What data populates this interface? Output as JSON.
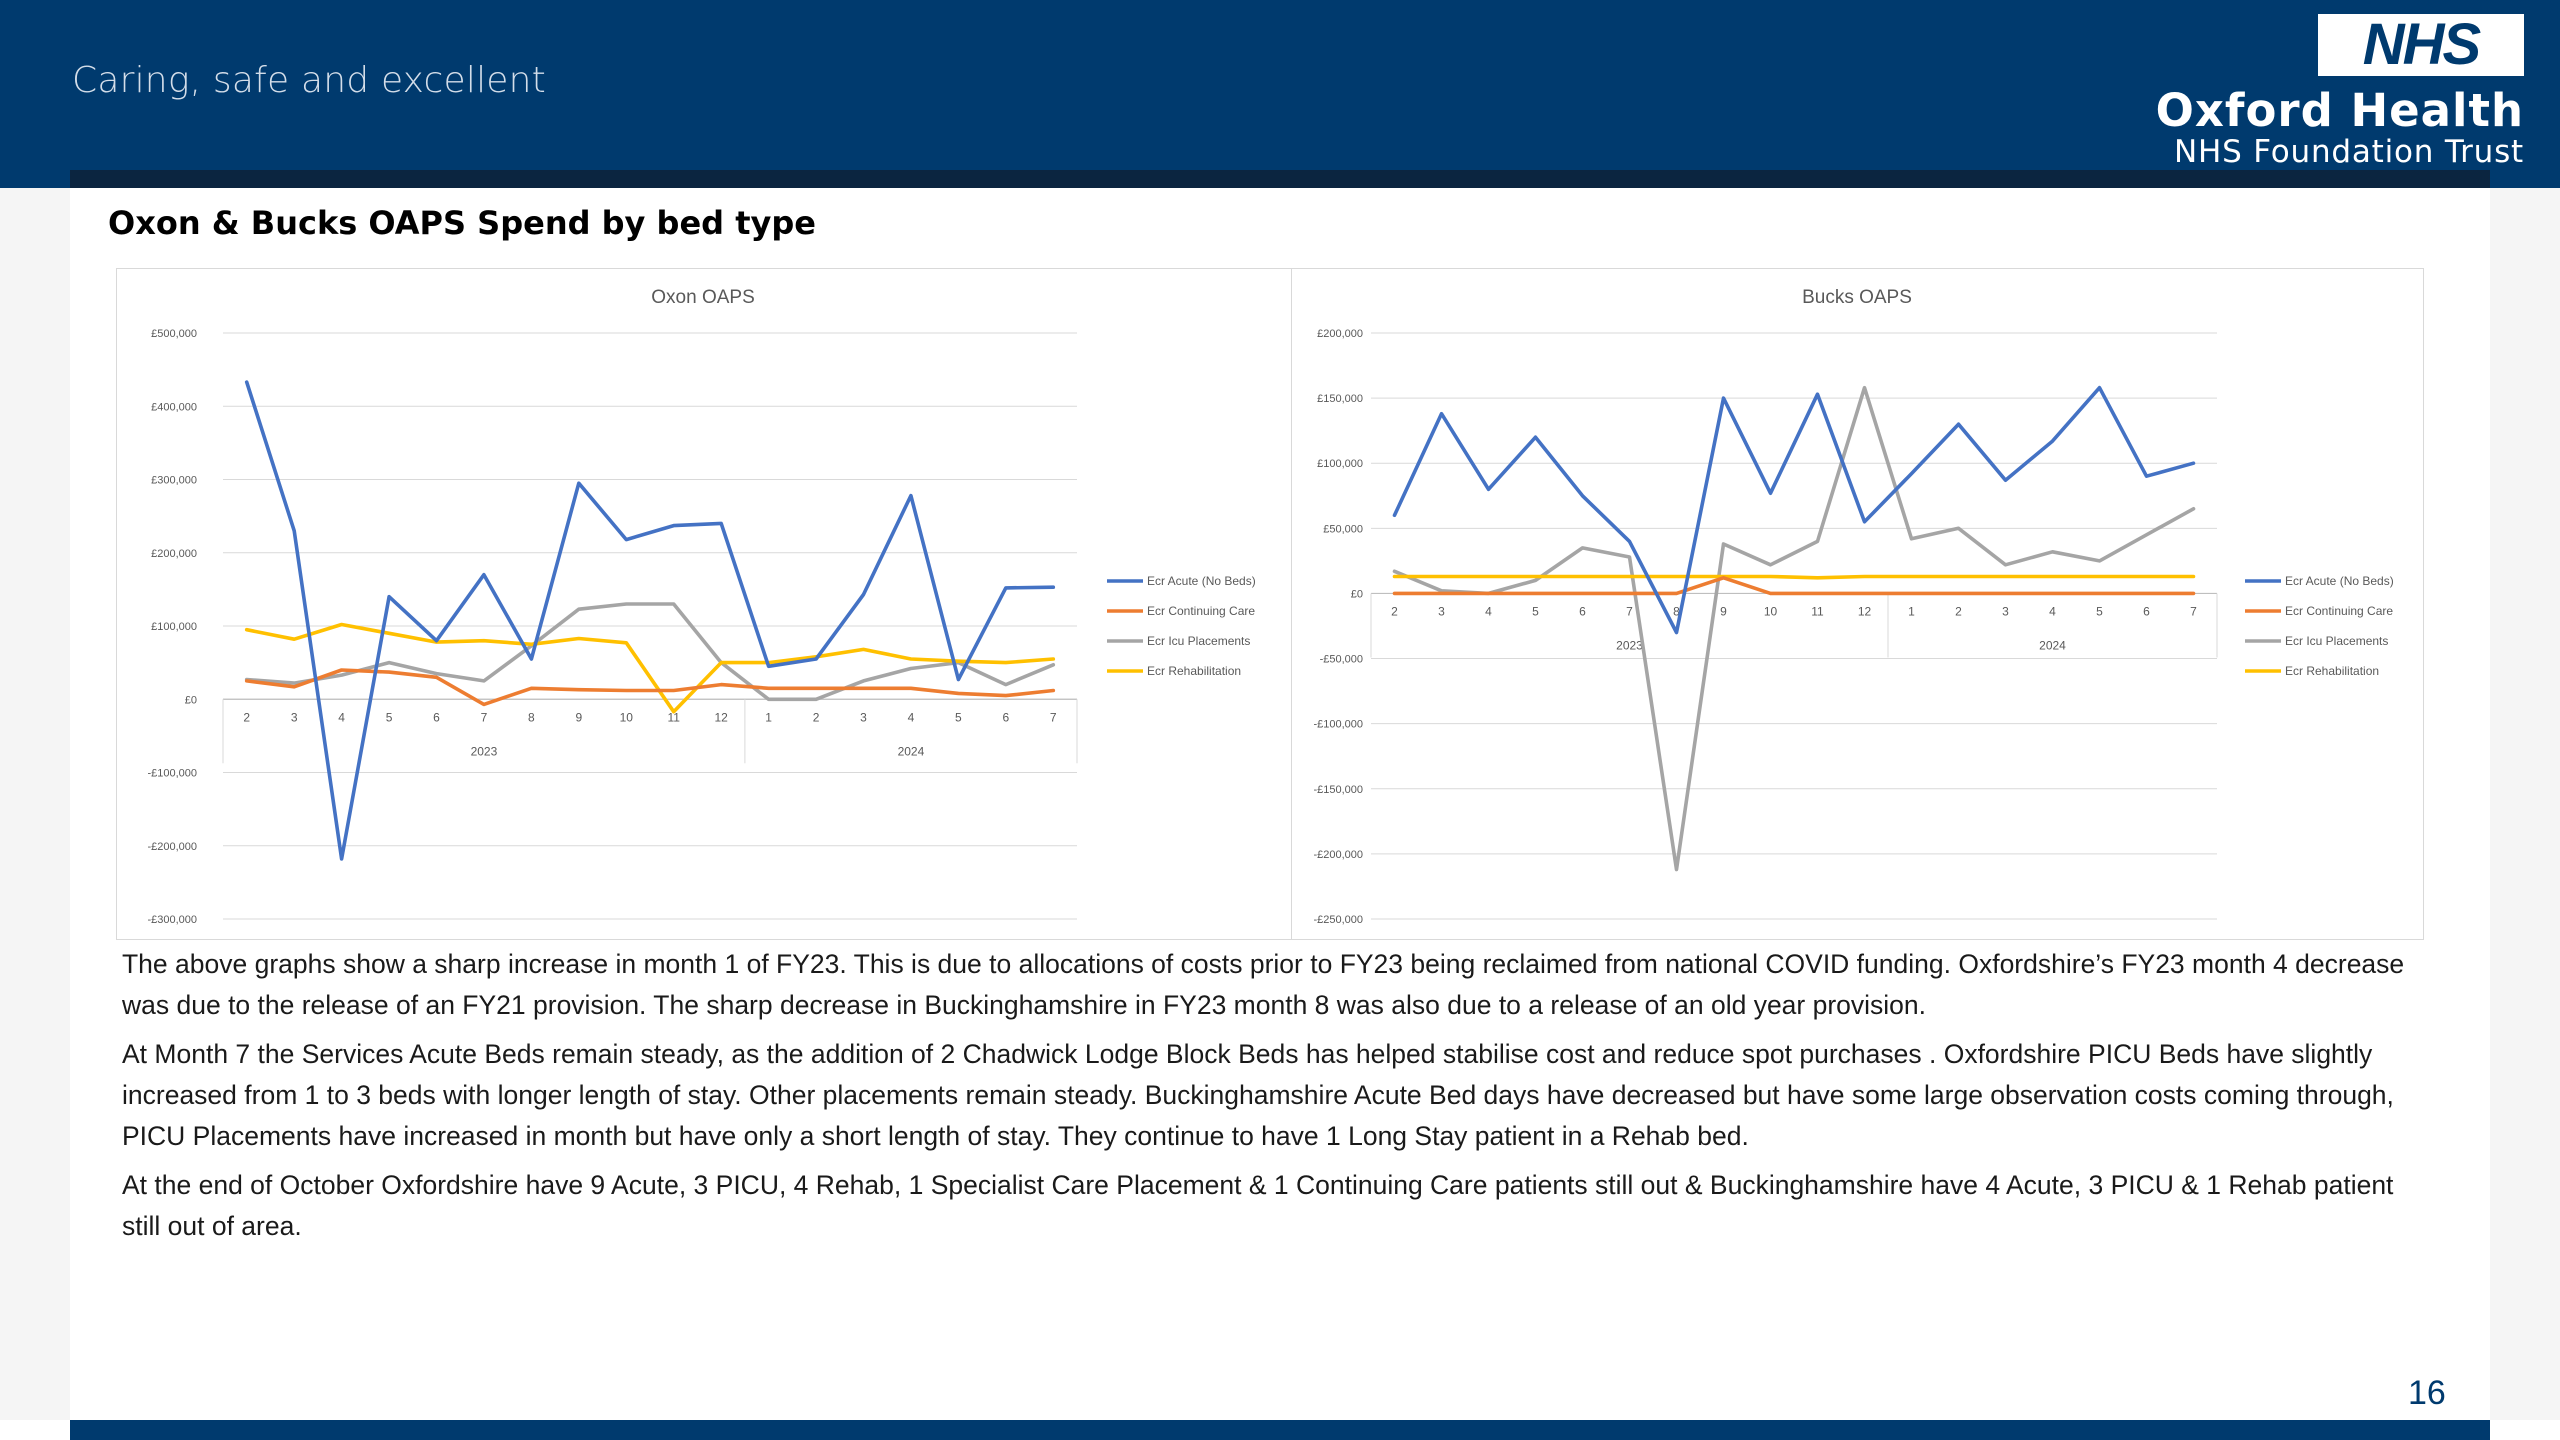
{
  "header": {
    "tagline": "Caring, safe and excellent",
    "logo_text": "NHS",
    "org_name": "Oxford Health",
    "org_sub": "NHS Foundation Trust"
  },
  "page": {
    "title": "Oxon & Bucks OAPS Spend by bed type",
    "page_number": "16"
  },
  "colors": {
    "header": "#003a6e",
    "acute": "#4472c4",
    "continuing": "#ed7d31",
    "icu": "#a5a5a5",
    "rehab": "#ffc000"
  },
  "chart_data": [
    {
      "type": "line",
      "title": "Oxon OAPS",
      "categories": [
        "2",
        "3",
        "4",
        "5",
        "6",
        "7",
        "8",
        "9",
        "10",
        "11",
        "12",
        "1",
        "2",
        "3",
        "4",
        "5",
        "6",
        "7"
      ],
      "year_groups": [
        {
          "label": "2023",
          "count": 11
        },
        {
          "label": "2024",
          "count": 7
        }
      ],
      "ylim": [
        -300000,
        500000
      ],
      "yticks": [
        500000,
        400000,
        300000,
        200000,
        100000,
        0,
        -100000,
        -200000,
        -300000
      ],
      "ytick_labels": [
        "£500,000",
        "£400,000",
        "£300,000",
        "£200,000",
        "£100,000",
        "£0",
        "-£100,000",
        "-£200,000",
        "-£300,000"
      ],
      "grid": true,
      "legend_position": "right",
      "series": [
        {
          "name": "Ecr Acute (No Beds)",
          "color": "#4472c4",
          "values": [
            433000,
            230000,
            -218000,
            140000,
            80000,
            170000,
            55000,
            295000,
            218000,
            237000,
            240000,
            45000,
            55000,
            143000,
            278000,
            27000,
            152000,
            153000
          ]
        },
        {
          "name": "Ecr Continuing Care",
          "color": "#ed7d31",
          "values": [
            25000,
            17000,
            40000,
            37000,
            30000,
            -7000,
            15000,
            13000,
            12000,
            12000,
            20000,
            15000,
            15000,
            15000,
            15000,
            8000,
            5000,
            12000
          ]
        },
        {
          "name": "Ecr Icu Placements",
          "color": "#a5a5a5",
          "values": [
            27000,
            22000,
            33000,
            50000,
            35000,
            25000,
            73000,
            123000,
            130000,
            130000,
            50000,
            0,
            0,
            25000,
            42000,
            50000,
            20000,
            47000
          ]
        },
        {
          "name": "Ecr Rehabilitation",
          "color": "#ffc000",
          "values": [
            95000,
            82000,
            102000,
            90000,
            78000,
            80000,
            75000,
            83000,
            77000,
            -17000,
            50000,
            50000,
            58000,
            68000,
            55000,
            52000,
            50000,
            55000
          ]
        }
      ]
    },
    {
      "type": "line",
      "title": "Bucks OAPS",
      "categories": [
        "2",
        "3",
        "4",
        "5",
        "6",
        "7",
        "8",
        "9",
        "10",
        "11",
        "12",
        "1",
        "2",
        "3",
        "4",
        "5",
        "6",
        "7"
      ],
      "year_groups": [
        {
          "label": "2023",
          "count": 11
        },
        {
          "label": "2024",
          "count": 7
        }
      ],
      "ylim": [
        -250000,
        200000
      ],
      "yticks": [
        200000,
        150000,
        100000,
        50000,
        0,
        -50000,
        -100000,
        -150000,
        -200000,
        -250000
      ],
      "ytick_labels": [
        "£200,000",
        "£150,000",
        "£100,000",
        "£50,000",
        "£0",
        "-£50,000",
        "-£100,000",
        "-£150,000",
        "-£200,000",
        "-£250,000"
      ],
      "grid": true,
      "legend_position": "right",
      "series": [
        {
          "name": "Ecr Acute (No Beds)",
          "color": "#4472c4",
          "values": [
            60000,
            138000,
            80000,
            120000,
            75000,
            40000,
            -30000,
            150000,
            77000,
            153000,
            55000,
            92000,
            130000,
            87000,
            117000,
            158000,
            90000,
            100000
          ]
        },
        {
          "name": "Ecr Continuing Care",
          "color": "#ed7d31",
          "values": [
            0,
            0,
            0,
            0,
            0,
            0,
            0,
            12000,
            0,
            0,
            0,
            0,
            0,
            0,
            0,
            0,
            0,
            0
          ]
        },
        {
          "name": "Ecr Icu Placements",
          "color": "#a5a5a5",
          "values": [
            17000,
            2000,
            0,
            10000,
            35000,
            28000,
            -212000,
            38000,
            22000,
            40000,
            158000,
            42000,
            50000,
            22000,
            32000,
            25000,
            45000,
            65000
          ]
        },
        {
          "name": "Ecr Rehabilitation",
          "color": "#ffc000",
          "values": [
            13000,
            13000,
            13000,
            13000,
            13000,
            13000,
            13000,
            13000,
            13000,
            12000,
            13000,
            13000,
            13000,
            13000,
            13000,
            13000,
            13000,
            13000
          ]
        }
      ]
    }
  ],
  "body": {
    "p1": "The above graphs show a sharp increase in month 1 of FY23. This is due to allocations of costs prior to FY23 being reclaimed from national COVID funding. Oxfordshire’s FY23 month 4 decrease was due to the release of an FY21 provision. The sharp decrease in Buckinghamshire in FY23 month 8 was also due to a release of an old year provision.",
    "p2": "At Month 7  the Services Acute Beds remain steady, as the addition of 2 Chadwick Lodge Block Beds has helped stabilise cost and reduce spot purchases .  Oxfordshire PICU Beds have slightly increased from 1 to 3 beds with longer length of stay. Other placements remain steady.  Buckinghamshire Acute Bed days have decreased but have some large observation costs coming through,  PICU Placements have increased in month but have only a short length of stay.  They continue to have 1 Long Stay patient in a Rehab bed.",
    "p3": "At the end of October Oxfordshire have 9 Acute, 3 PICU, 4 Rehab, 1 Specialist Care Placement & 1 Continuing Care patients still out & Buckinghamshire have 4 Acute, 3 PICU & 1 Rehab patient still out of area."
  }
}
